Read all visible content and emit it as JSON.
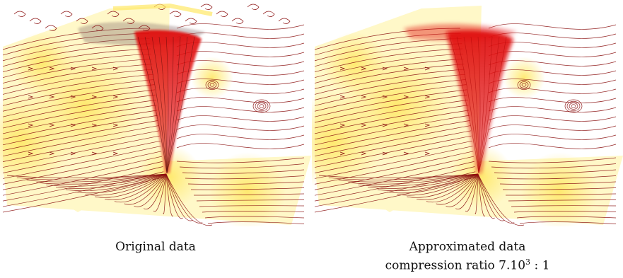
{
  "figure": {
    "left": {
      "caption": "Original data"
    },
    "right": {
      "caption_line1": "Approximated data",
      "caption_line2_prefix": "compression ratio 7.10",
      "caption_line2_sup": "3",
      "caption_line2_suffix": " : 1"
    }
  },
  "colors": {
    "background": "#ffffff",
    "streamline": "#8b1010",
    "field_low": "#fff8c8",
    "field_mid": "#ffe866",
    "vortex": "#e01010"
  }
}
